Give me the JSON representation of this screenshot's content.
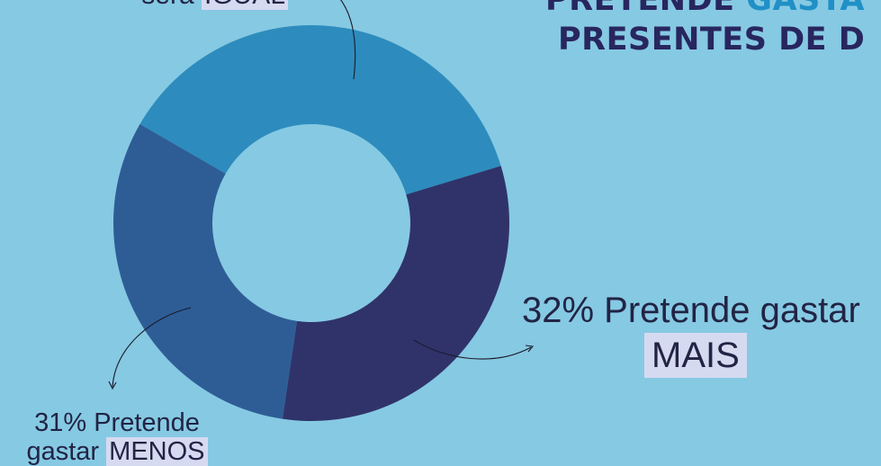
{
  "headline": {
    "line1_prefix": "PRETENDE",
    "line1_accent": "GASTA",
    "line2": "PRESENTES DE D"
  },
  "callouts": {
    "igual": {
      "before": "será",
      "highlight": "IGUAL"
    },
    "mais": {
      "before": "32%  Pretende gastar",
      "highlight": "MAIS"
    },
    "menos": {
      "line1": "31% Pretende",
      "before": "gastar",
      "highlight": "MENOS"
    }
  },
  "colors": {
    "background": "#86c9e3",
    "igual": "#2d8cbd",
    "mais": "#30336a",
    "menos": "#2e5d96",
    "text": "#222444",
    "highlight": "#d6daf1"
  },
  "chart_data": {
    "type": "pie",
    "donut": true,
    "title": "",
    "categories": [
      "IGUAL",
      "MAIS",
      "MENOS"
    ],
    "values": [
      37,
      32,
      31
    ],
    "legend": "none"
  }
}
